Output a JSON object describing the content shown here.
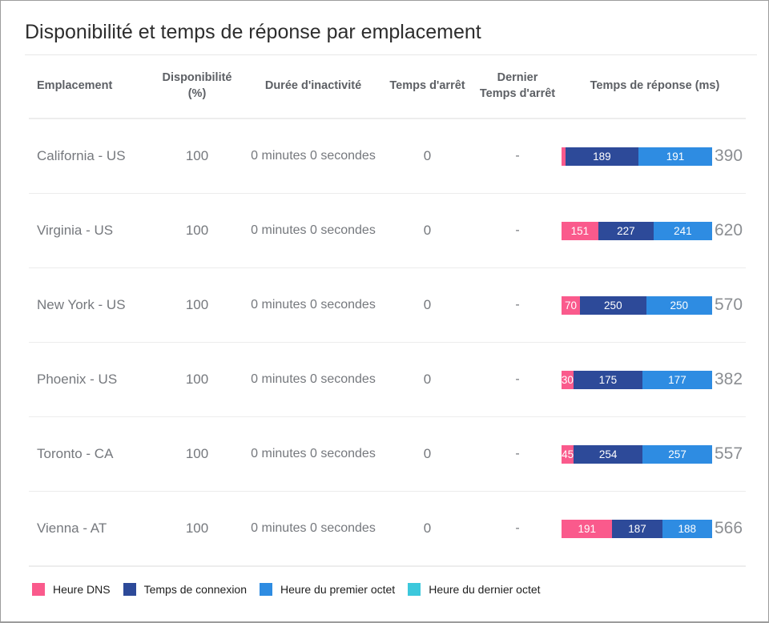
{
  "page": {
    "title": "Disponibilité et temps de réponse par emplacement"
  },
  "table": {
    "columns": [
      "Emplacement",
      "Disponibilité\n(%)",
      "Durée d'inactivité",
      "Temps d'arrêt",
      "Dernier\nTemps d'arrêt",
      "Temps de réponse (ms)"
    ],
    "rows": [
      {
        "location": "California - US",
        "availability": "100",
        "downtime_duration": "0 minutes 0 secondes",
        "downtime_count": "0",
        "last_downtime": "-",
        "total": "390",
        "segments": [
          {
            "type": "dns",
            "value": 10,
            "label": ""
          },
          {
            "type": "connection",
            "value": 189,
            "label": "189"
          },
          {
            "type": "first_byte",
            "value": 191,
            "label": "191"
          }
        ]
      },
      {
        "location": "Virginia - US",
        "availability": "100",
        "downtime_duration": "0 minutes 0 secondes",
        "downtime_count": "0",
        "last_downtime": "-",
        "total": "620",
        "segments": [
          {
            "type": "dns",
            "value": 151,
            "label": "151"
          },
          {
            "type": "connection",
            "value": 227,
            "label": "227"
          },
          {
            "type": "first_byte",
            "value": 241,
            "label": "241"
          }
        ]
      },
      {
        "location": "New York - US",
        "availability": "100",
        "downtime_duration": "0 minutes 0 secondes",
        "downtime_count": "0",
        "last_downtime": "-",
        "total": "570",
        "segments": [
          {
            "type": "dns",
            "value": 70,
            "label": "70"
          },
          {
            "type": "connection",
            "value": 250,
            "label": "250"
          },
          {
            "type": "first_byte",
            "value": 250,
            "label": "250"
          }
        ]
      },
      {
        "location": "Phoenix - US",
        "availability": "100",
        "downtime_duration": "0 minutes 0 secondes",
        "downtime_count": "0",
        "last_downtime": "-",
        "total": "382",
        "segments": [
          {
            "type": "dns",
            "value": 30,
            "label": "30"
          },
          {
            "type": "connection",
            "value": 175,
            "label": "175"
          },
          {
            "type": "first_byte",
            "value": 177,
            "label": "177"
          }
        ]
      },
      {
        "location": "Toronto - CA",
        "availability": "100",
        "downtime_duration": "0 minutes 0 secondes",
        "downtime_count": "0",
        "last_downtime": "-",
        "total": "557",
        "segments": [
          {
            "type": "dns",
            "value": 45,
            "label": "45"
          },
          {
            "type": "connection",
            "value": 254,
            "label": "254"
          },
          {
            "type": "first_byte",
            "value": 257,
            "label": "257"
          }
        ]
      },
      {
        "location": "Vienna - AT",
        "availability": "100",
        "downtime_duration": "0 minutes 0 secondes",
        "downtime_count": "0",
        "last_downtime": "-",
        "total": "566",
        "segments": [
          {
            "type": "dns",
            "value": 191,
            "label": "191"
          },
          {
            "type": "connection",
            "value": 187,
            "label": "187"
          },
          {
            "type": "first_byte",
            "value": 188,
            "label": "188"
          }
        ]
      }
    ]
  },
  "legend": {
    "items": [
      {
        "type": "dns",
        "label": "Heure DNS",
        "color": "#fa5a8c"
      },
      {
        "type": "connection",
        "label": "Temps de connexion",
        "color": "#2d4a99"
      },
      {
        "type": "first_byte",
        "label": "Heure du premier octet",
        "color": "#2e8ce2"
      },
      {
        "type": "last_byte",
        "label": "Heure du dernier octet",
        "color": "#3cc8dc"
      }
    ]
  },
  "chart_data": {
    "type": "bar",
    "subtype": "horizontal-stacked-100pct",
    "title": "Temps de réponse (ms)",
    "categories": [
      "California - US",
      "Virginia - US",
      "New York - US",
      "Phoenix - US",
      "Toronto - CA",
      "Vienna - AT"
    ],
    "series": [
      {
        "name": "Heure DNS",
        "values": [
          10,
          151,
          70,
          30,
          45,
          191
        ]
      },
      {
        "name": "Temps de connexion",
        "values": [
          189,
          227,
          250,
          175,
          254,
          187
        ]
      },
      {
        "name": "Heure du premier octet",
        "values": [
          191,
          241,
          250,
          177,
          257,
          188
        ]
      }
    ],
    "totals": [
      390,
      620,
      570,
      382,
      557,
      566
    ],
    "legend_position": "bottom"
  }
}
